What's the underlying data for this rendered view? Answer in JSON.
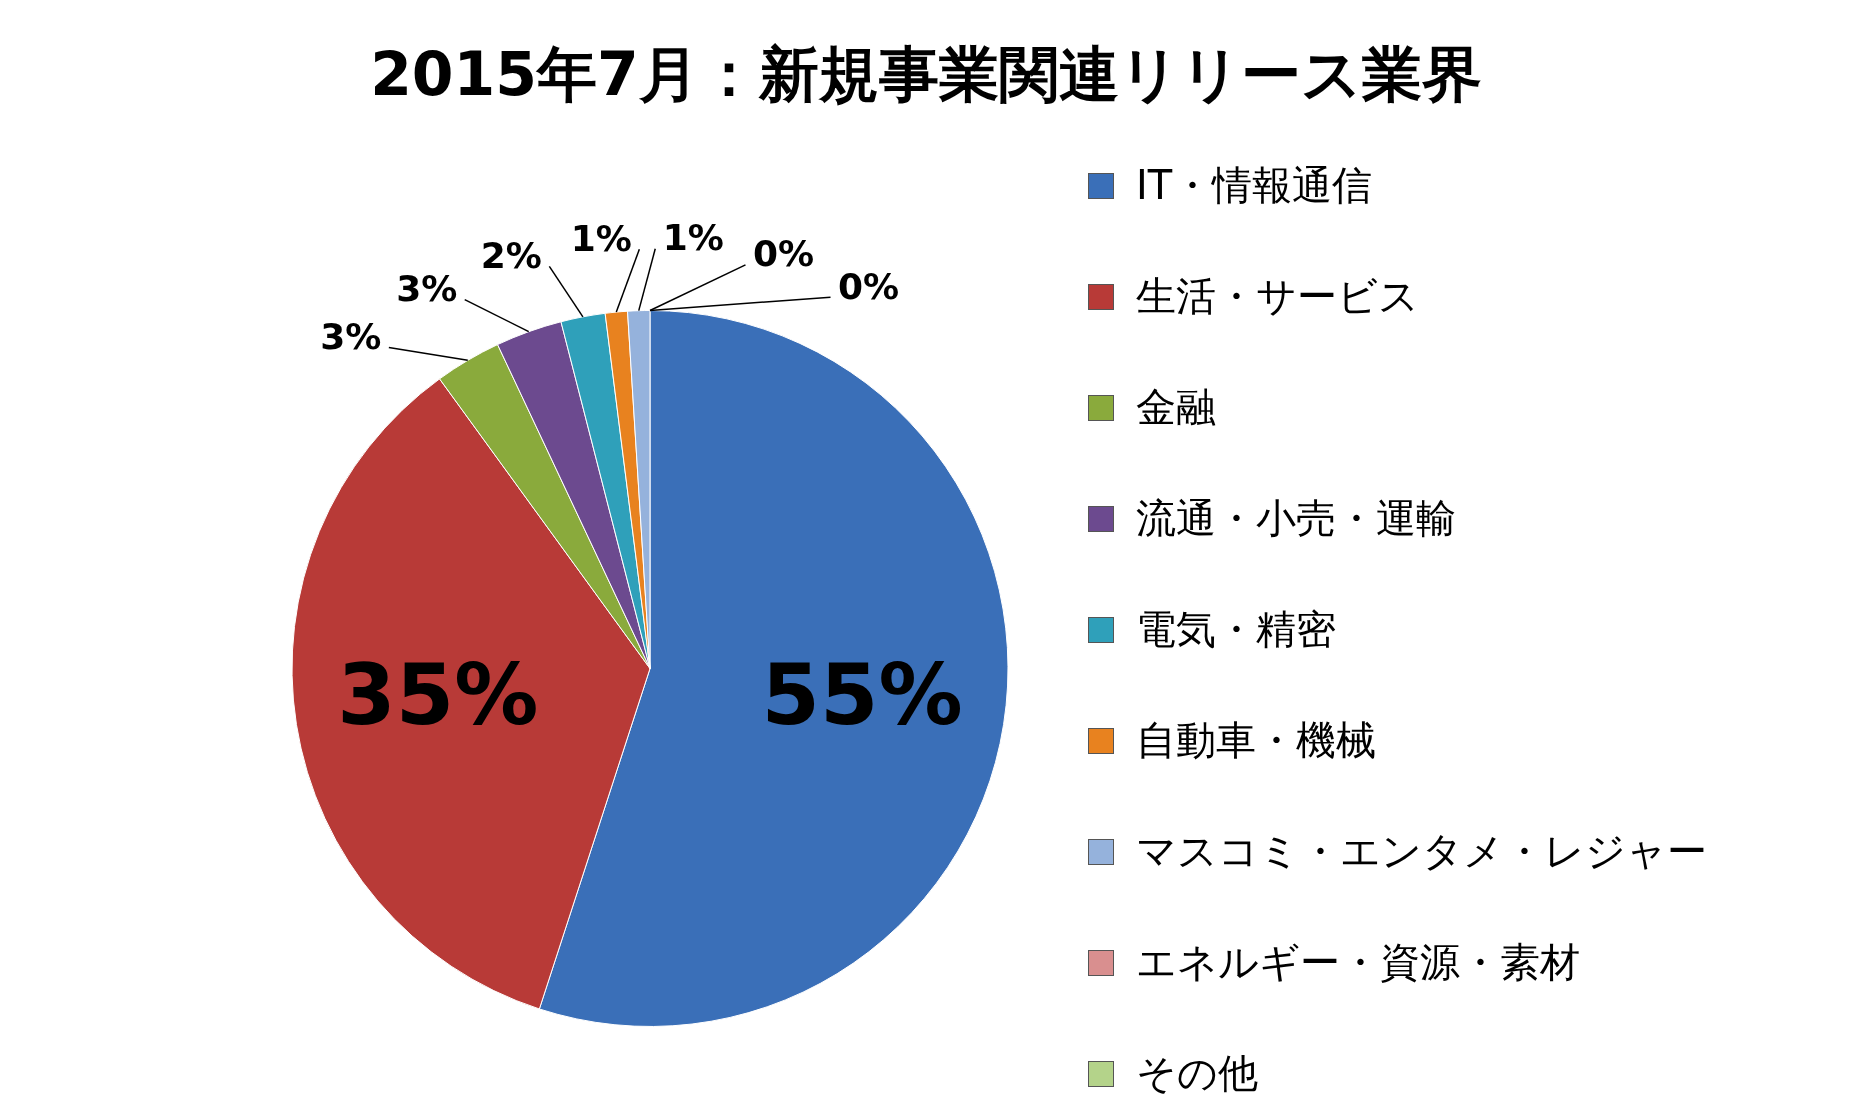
{
  "chart_data": {
    "type": "pie",
    "title": "2015年7月：新規事業関連リリース業界",
    "categories": [
      "IT・情報通信",
      "生活・サービス",
      "金融",
      "流通・小売・運輸",
      "電気・精密",
      "自動車・機械",
      "マスコミ・エンタメ・レジャー",
      "エネルギー・資源・素材",
      "その他"
    ],
    "values": [
      55,
      35,
      3,
      3,
      2,
      1,
      1,
      0,
      0
    ],
    "value_labels": [
      "55%",
      "35%",
      "3%",
      "3%",
      "2%",
      "1%",
      "1%",
      "0%",
      "0%"
    ],
    "colors": [
      "#3a6fb8",
      "#b83a37",
      "#8aaa3c",
      "#6c4a8f",
      "#2fa0ba",
      "#e8821f",
      "#95b2dc",
      "#d98f8f",
      "#b4d38a"
    ],
    "legend": "right"
  }
}
